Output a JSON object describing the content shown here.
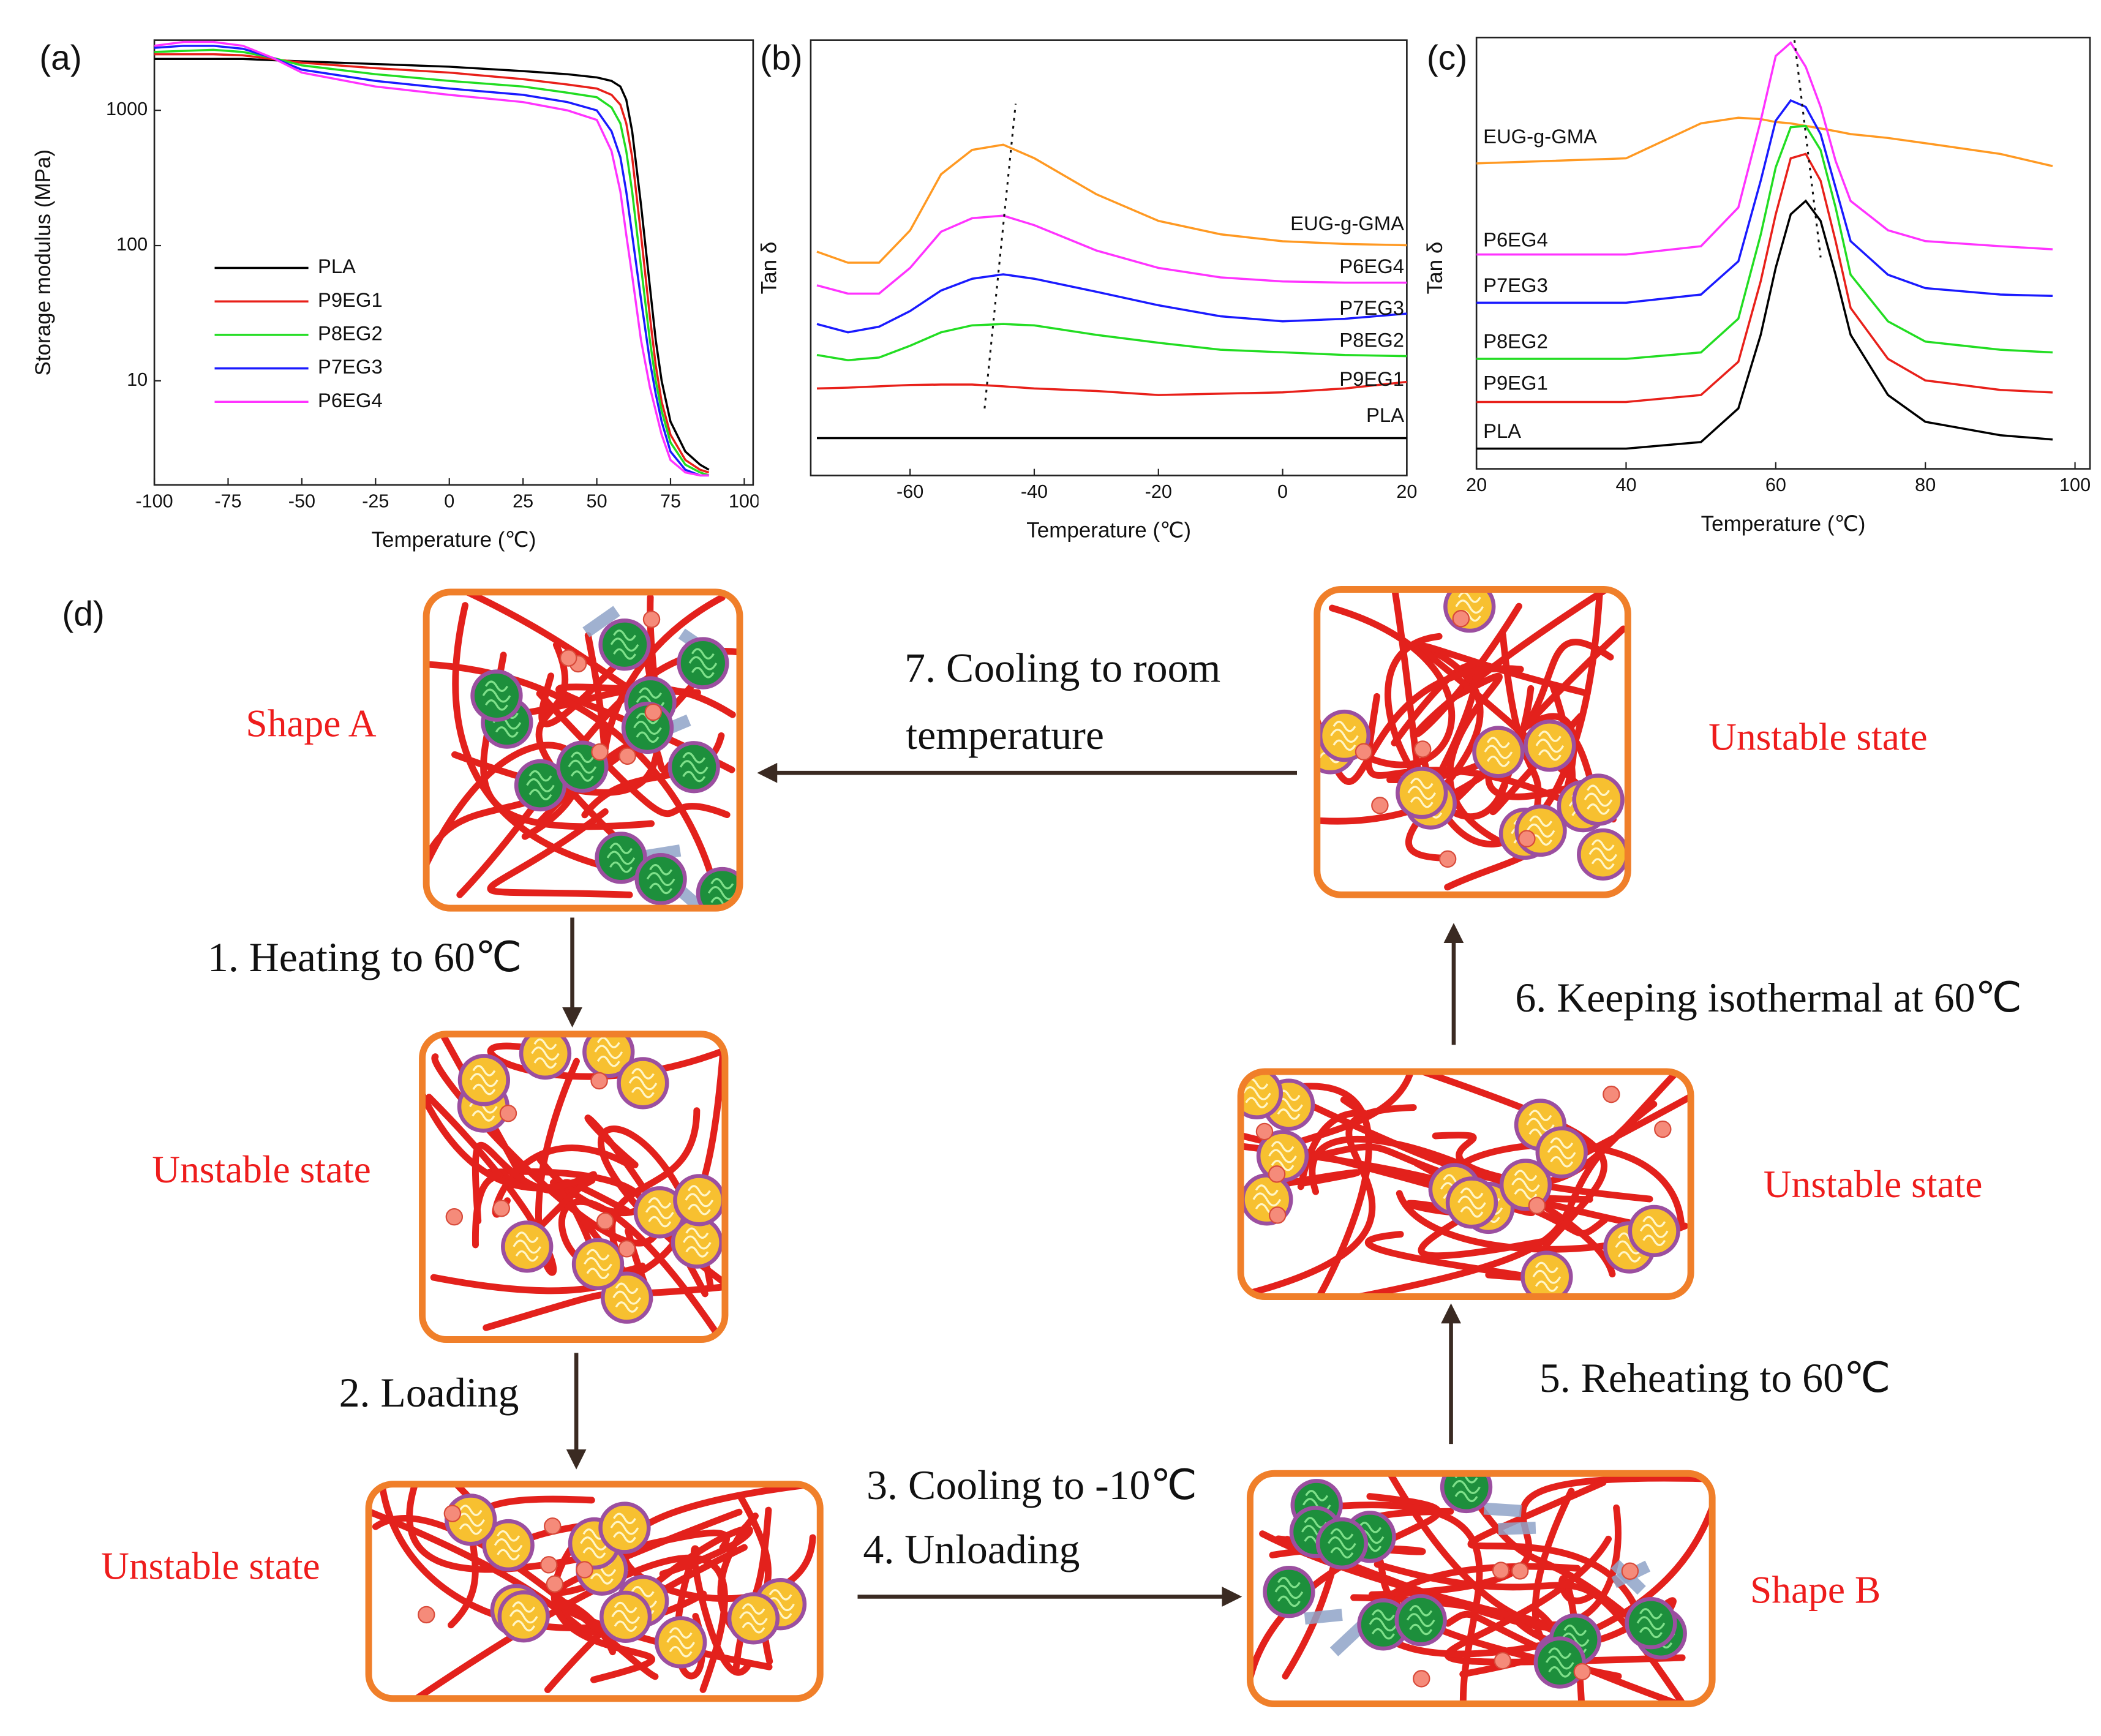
{
  "chart_data": [
    {
      "type": "line",
      "panel": "(a)",
      "xlabel": "Temperature (℃)",
      "ylabel": "Storage modulus (MPa)",
      "log_y": true,
      "legend": "lower left",
      "xlim": [
        -100,
        103
      ],
      "xticks": [
        -100,
        -75,
        -50,
        -25,
        0,
        25,
        50,
        75,
        100
      ],
      "ylim": [
        1.7,
        3300
      ],
      "yticks": [
        10,
        100,
        1000
      ],
      "x": [
        -100,
        -90,
        -80,
        -70,
        -60,
        -50,
        -25,
        0,
        25,
        40,
        50,
        55,
        58,
        60,
        62,
        65,
        68,
        70,
        72,
        75,
        80,
        85,
        88
      ],
      "series": [
        {
          "name": "PLA",
          "color": "#000000",
          "values": [
            2400,
            2400,
            2400,
            2400,
            2350,
            2300,
            2200,
            2100,
            1950,
            1850,
            1750,
            1650,
            1500,
            1200,
            700,
            200,
            50,
            20,
            10,
            5,
            3,
            2.4,
            2.2
          ]
        },
        {
          "name": "P9EG1",
          "color": "#e8201a",
          "values": [
            2600,
            2600,
            2600,
            2550,
            2400,
            2250,
            2050,
            1900,
            1700,
            1550,
            1450,
            1300,
            1100,
            800,
            450,
            120,
            30,
            13,
            7,
            4,
            2.6,
            2.2,
            2.1
          ]
        },
        {
          "name": "P8EG2",
          "color": "#22dd22",
          "values": [
            2700,
            2750,
            2800,
            2700,
            2450,
            2150,
            1850,
            1650,
            1500,
            1350,
            1250,
            1050,
            800,
            500,
            250,
            70,
            20,
            10,
            6,
            3.5,
            2.4,
            2.1,
            2.0
          ]
        },
        {
          "name": "P7EG3",
          "color": "#1a1aff",
          "values": [
            2900,
            3000,
            3000,
            2850,
            2450,
            2000,
            1650,
            1450,
            1300,
            1150,
            1000,
            700,
            450,
            250,
            120,
            40,
            14,
            8,
            5,
            3,
            2.2,
            2.0,
            2.0
          ]
        },
        {
          "name": "P6EG4",
          "color": "#ff33ff",
          "values": [
            3000,
            3200,
            3200,
            3000,
            2450,
            1900,
            1500,
            1300,
            1150,
            1000,
            850,
            500,
            250,
            120,
            60,
            20,
            9,
            6,
            4,
            2.6,
            2.1,
            2.0,
            2.0
          ]
        }
      ]
    },
    {
      "type": "line",
      "panel": "(b)",
      "xlabel": "Temperature (℃)",
      "ylabel": "Tan δ",
      "xlim": [
        -76,
        20
      ],
      "xticks": [
        -60,
        -40,
        -20,
        0,
        20
      ],
      "ylim": [
        0,
        10
      ],
      "x": [
        -75,
        -70,
        -65,
        -60,
        -55,
        -50,
        -45,
        -40,
        -30,
        -20,
        -10,
        0,
        10,
        20
      ],
      "series": [
        {
          "name": "EUG-g-GMA",
          "color": "#ff9922",
          "values": [
            5.14,
            4.89,
            4.89,
            5.63,
            6.92,
            7.48,
            7.6,
            7.29,
            6.46,
            5.85,
            5.54,
            5.38,
            5.32,
            5.29
          ]
        },
        {
          "name": "P6EG4",
          "color": "#ff33ff",
          "values": [
            4.37,
            4.18,
            4.18,
            4.77,
            5.6,
            5.91,
            5.97,
            5.75,
            5.17,
            4.77,
            4.55,
            4.46,
            4.43,
            4.43
          ]
        },
        {
          "name": "P7EG3",
          "color": "#1a1aff",
          "values": [
            3.48,
            3.29,
            3.42,
            3.78,
            4.25,
            4.52,
            4.62,
            4.52,
            4.22,
            3.91,
            3.66,
            3.54,
            3.6,
            3.72
          ]
        },
        {
          "name": "P8EG2",
          "color": "#22dd22",
          "values": [
            2.77,
            2.65,
            2.71,
            2.98,
            3.29,
            3.45,
            3.48,
            3.45,
            3.23,
            3.05,
            2.89,
            2.83,
            2.77,
            2.74
          ]
        },
        {
          "name": "P9EG1",
          "color": "#e8201a",
          "values": [
            2.0,
            2.02,
            2.05,
            2.08,
            2.09,
            2.09,
            2.05,
            2.0,
            1.94,
            1.85,
            1.88,
            1.91,
            2.0,
            2.15
          ]
        },
        {
          "name": "PLA",
          "color": "#000000",
          "values": [
            0.86,
            0.86,
            0.86,
            0.86,
            0.86,
            0.86,
            0.86,
            0.86,
            0.86,
            0.86,
            0.86,
            0.86,
            0.86,
            0.86
          ]
        }
      ]
    },
    {
      "type": "line",
      "panel": "(c)",
      "xlabel": "Temperature (℃)",
      "ylabel": "Tan δ",
      "xlim": [
        20,
        102
      ],
      "xticks": [
        20,
        40,
        60,
        80,
        100
      ],
      "ylim": [
        0,
        10
      ],
      "x": [
        20,
        40,
        50,
        55,
        58,
        60,
        62,
        64,
        66,
        68,
        70,
        75,
        80,
        90,
        97
      ],
      "series": [
        {
          "name": "EUG-g-GMA",
          "color": "#ff9922",
          "values": [
            7.08,
            7.2,
            8.01,
            8.14,
            8.11,
            8.04,
            8.01,
            7.95,
            7.89,
            7.83,
            7.76,
            7.67,
            7.55,
            7.3,
            7.02
          ]
        },
        {
          "name": "P6EG4",
          "color": "#ff33ff",
          "values": [
            4.97,
            4.97,
            5.16,
            6.06,
            8.07,
            9.57,
            9.88,
            9.32,
            8.39,
            7.14,
            6.21,
            5.53,
            5.28,
            5.16,
            5.09
          ]
        },
        {
          "name": "P7EG3",
          "color": "#1a1aff",
          "values": [
            3.85,
            3.85,
            4.04,
            4.81,
            6.68,
            8.07,
            8.54,
            8.39,
            7.76,
            6.52,
            5.28,
            4.5,
            4.19,
            4.04,
            4.01
          ]
        },
        {
          "name": "P8EG2",
          "color": "#22dd22",
          "values": [
            2.55,
            2.55,
            2.7,
            3.48,
            5.43,
            6.99,
            7.92,
            7.95,
            7.39,
            6.06,
            4.5,
            3.42,
            2.95,
            2.76,
            2.7
          ]
        },
        {
          "name": "P9EG1",
          "color": "#e8201a",
          "values": [
            1.55,
            1.55,
            1.71,
            2.48,
            4.35,
            5.9,
            7.2,
            7.3,
            6.68,
            5.28,
            3.73,
            2.55,
            2.05,
            1.83,
            1.77
          ]
        },
        {
          "name": "PLA",
          "color": "#000000",
          "values": [
            0.47,
            0.47,
            0.62,
            1.4,
            3.11,
            4.66,
            5.9,
            6.21,
            5.75,
            4.5,
            3.11,
            1.71,
            1.09,
            0.78,
            0.68
          ]
        }
      ]
    }
  ],
  "diagram": {
    "panel": "(d)",
    "states": [
      "Shape A",
      "Unstable state",
      "Unstable state",
      "Shape B",
      "Unstable state",
      "Unstable state"
    ],
    "steps": [
      [
        "1. Heating to 60℃"
      ],
      [
        "2. Loading"
      ],
      [
        "3. Cooling to -10℃"
      ],
      [
        "4. Unloading"
      ],
      [
        "5. Reheating to 60℃"
      ],
      [
        "6. Keeping isothermal at 60℃"
      ],
      [
        "7. Cooling to room",
        "temperature"
      ]
    ]
  }
}
